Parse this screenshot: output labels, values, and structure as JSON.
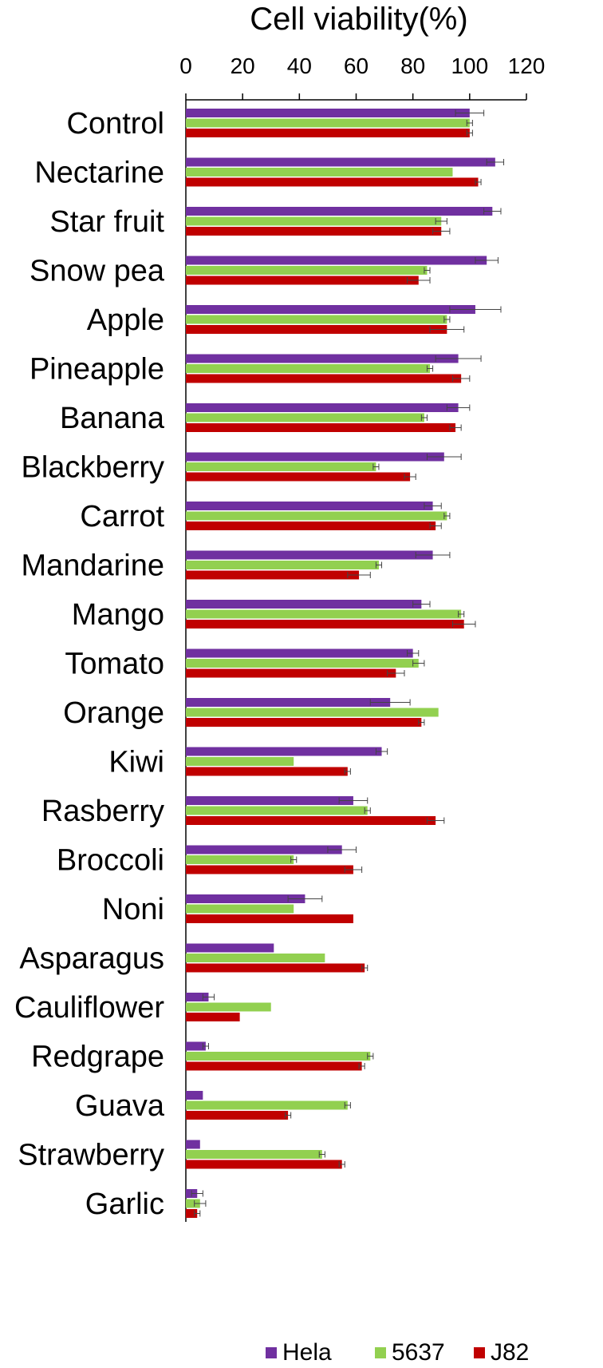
{
  "chart_data": {
    "type": "bar",
    "orientation": "horizontal",
    "xlabel": "Cell viability(%)",
    "xlim": [
      0,
      120
    ],
    "xticks": [
      0,
      20,
      40,
      60,
      80,
      100,
      120
    ],
    "axis_position": "top",
    "legend_position": "bottom-right",
    "categories": [
      "Control",
      "Nectarine",
      "Star fruit",
      "Snow pea",
      "Apple",
      "Pineapple",
      "Banana",
      "Blackberry",
      "Carrot",
      "Mandarine",
      "Mango",
      "Tomato",
      "Orange",
      "Kiwi",
      "Rasberry",
      "Broccoli",
      "Noni",
      "Asparagus",
      "Cauliflower",
      "Redgrape",
      "Guava",
      "Strawberry",
      "Garlic"
    ],
    "series": [
      {
        "name": "Hela",
        "color": "#7030a0",
        "values": [
          100,
          109,
          108,
          106,
          102,
          96,
          96,
          91,
          87,
          87,
          83,
          80,
          72,
          69,
          59,
          55,
          42,
          31,
          8,
          7,
          6,
          5,
          4
        ],
        "errors": [
          5,
          3,
          3,
          4,
          9,
          8,
          4,
          6,
          3,
          6,
          3,
          2,
          7,
          2,
          5,
          5,
          6,
          0,
          2,
          1,
          0,
          0,
          2
        ]
      },
      {
        "name": "5637",
        "color": "#92d050",
        "values": [
          100,
          94,
          90,
          85,
          92,
          86,
          84,
          67,
          92,
          68,
          97,
          82,
          89,
          38,
          64,
          38,
          38,
          49,
          30,
          65,
          57,
          48,
          5
        ],
        "errors": [
          1,
          0,
          2,
          1,
          1,
          1,
          1,
          1,
          1,
          1,
          1,
          2,
          0,
          0,
          1,
          1,
          0,
          0,
          0,
          1,
          1,
          1,
          2
        ]
      },
      {
        "name": "J82",
        "color": "#c00000",
        "values": [
          100,
          103,
          90,
          82,
          92,
          97,
          95,
          79,
          88,
          61,
          98,
          74,
          83,
          57,
          88,
          59,
          59,
          63,
          19,
          62,
          36,
          55,
          4
        ],
        "errors": [
          1,
          1,
          3,
          4,
          6,
          3,
          2,
          2,
          2,
          4,
          4,
          3,
          1,
          1,
          3,
          3,
          0,
          1,
          0,
          1,
          1,
          1,
          1
        ]
      }
    ]
  }
}
